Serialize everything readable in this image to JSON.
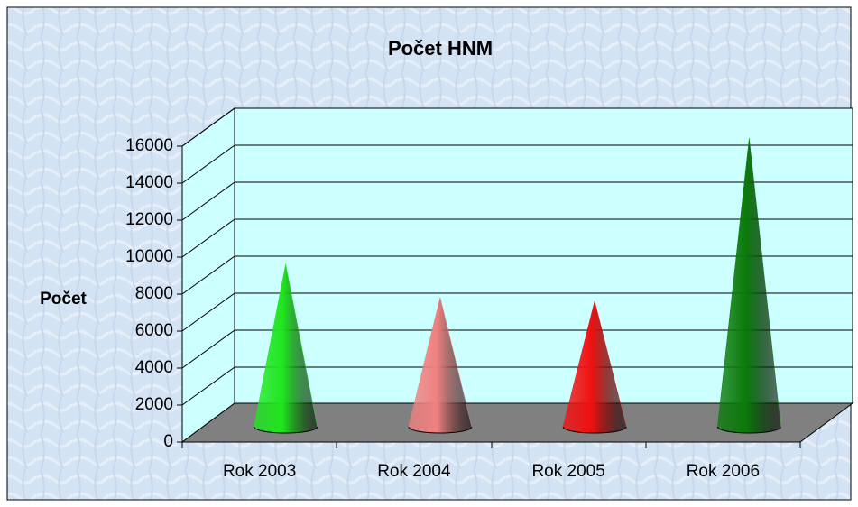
{
  "chart_data": {
    "type": "bar",
    "title": "Počet HNM",
    "y_label": "Počet",
    "categories": [
      "Rok 2003",
      "Rok 2004",
      "Rok 2005",
      "Rok 2006"
    ],
    "values": [
      8600,
      6800,
      6600,
      15400
    ],
    "colors": [
      "#1ee61e",
      "#f08080",
      "#f01010",
      "#0a7a0a"
    ],
    "ylim": [
      0,
      16000
    ],
    "yticks": [
      0,
      2000,
      4000,
      6000,
      8000,
      10000,
      12000,
      14000,
      16000
    ],
    "grid": true
  }
}
